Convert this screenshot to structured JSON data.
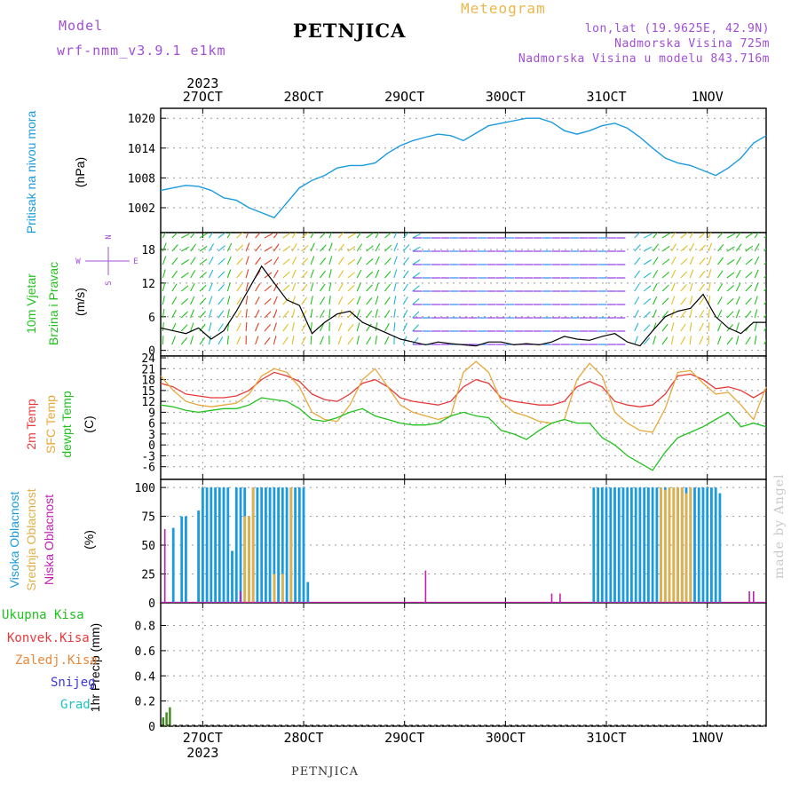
{
  "header": {
    "model_label": "Model",
    "model_name": "wrf-nmm_v3.9.1 e1km",
    "station": "PETNJICA",
    "product": "Meteogram",
    "lonlat": "lon,lat (19.9625E, 42.9N)",
    "elevation": "Nadmorska Visina 725m",
    "elevation_model": "Nadmorska Visina u modelu 843.716m"
  },
  "footer": {
    "station": "PETNJICA",
    "credit": "made by Angel"
  },
  "colors": {
    "pressure": "#1a9be0",
    "temp2m": "#e83a3a",
    "sfc_temp": "#e8a83a",
    "dewpoint": "#22c21e",
    "high_cloud": "#1a9be0",
    "mid_cloud": "#e0b04a",
    "low_cloud": "#c01fb0",
    "precip": "#3d8a1a",
    "accent_purple": "#a14fd6"
  },
  "chart_data": [
    {
      "type": "line",
      "id": "pressure",
      "ylabel_lines": [
        "Pritisak na nivou mora",
        "(hPa)"
      ],
      "yticks": [
        1002,
        1008,
        1014,
        1020
      ],
      "ylim": [
        997,
        1022
      ],
      "xlim": [
        0,
        144
      ],
      "xtick_labels": [
        "27OCT",
        "28OCT",
        "29OCT",
        "30OCT",
        "31OCT",
        "1NOV"
      ],
      "xtick_hours": [
        10,
        34,
        58,
        82,
        106,
        130
      ],
      "year_label": "2023",
      "series": [
        {
          "x": [
            0,
            3,
            6,
            9,
            12,
            15,
            18,
            21,
            24,
            27,
            30,
            33,
            36,
            39,
            42,
            45,
            48,
            51,
            54,
            57,
            60,
            63,
            66,
            69,
            72,
            75,
            78,
            81,
            84,
            87,
            90,
            93,
            96,
            99,
            102,
            105,
            108,
            111,
            114,
            117,
            120,
            123,
            126,
            129,
            132,
            135,
            138,
            141,
            144
          ],
          "values": [
            1005.5,
            1006,
            1006.5,
            1006.3,
            1005.5,
            1004,
            1003.5,
            1002,
            1001,
            1000,
            1003,
            1006,
            1007.5,
            1008.5,
            1010,
            1010.5,
            1010.5,
            1011,
            1013,
            1014.5,
            1015.5,
            1016.2,
            1016.8,
            1016.5,
            1015.5,
            1017,
            1018.5,
            1019,
            1019.5,
            1020,
            1020,
            1019.2,
            1017.5,
            1016.8,
            1017.5,
            1018.5,
            1019,
            1018,
            1016.2,
            1014,
            1012,
            1011,
            1010.5,
            1009.5,
            1008.5,
            1010,
            1012,
            1015,
            1016.5
          ]
        }
      ]
    },
    {
      "type": "line",
      "id": "wind",
      "ylabel_lines": [
        "10m Vjetar",
        "Brzina i Pravac",
        "(m/s)"
      ],
      "compass": [
        "N",
        "W",
        "E",
        "S"
      ],
      "yticks": [
        0,
        6,
        12,
        18
      ],
      "ylim": [
        -1,
        21
      ],
      "xlim": [
        0,
        144
      ],
      "series": [
        {
          "name": "speed",
          "x": [
            0,
            3,
            6,
            9,
            12,
            15,
            18,
            21,
            24,
            27,
            30,
            33,
            36,
            39,
            42,
            45,
            48,
            51,
            54,
            57,
            60,
            63,
            66,
            69,
            72,
            75,
            78,
            81,
            84,
            87,
            90,
            93,
            96,
            99,
            102,
            105,
            108,
            111,
            114,
            117,
            120,
            123,
            126,
            129,
            132,
            135,
            138,
            141,
            144
          ],
          "values": [
            4,
            3.5,
            3,
            4,
            2,
            3.5,
            7,
            11,
            15,
            12,
            9,
            8,
            3,
            5,
            6.5,
            7,
            5,
            4,
            3,
            2,
            1.5,
            1,
            1.5,
            1.2,
            1,
            0.8,
            1.5,
            1.5,
            1,
            1.2,
            1,
            1.5,
            2.5,
            2,
            1.8,
            2.5,
            3,
            1.5,
            0.8,
            3.5,
            6,
            7,
            7.5,
            10,
            6,
            4,
            3,
            5,
            5
          ]
        }
      ]
    },
    {
      "type": "line",
      "id": "temperature",
      "ylabel_lines": [
        "2m Temp",
        "SFC Temp",
        "dewpt Temp",
        "(C)"
      ],
      "yticks": [
        -6,
        -3,
        0,
        3,
        6,
        9,
        12,
        15,
        18,
        21,
        24
      ],
      "ylim": [
        -9.5,
        24.5
      ],
      "xlim": [
        0,
        144
      ],
      "series": [
        {
          "name": "2m Temp",
          "x": [
            0,
            3,
            6,
            9,
            12,
            15,
            18,
            21,
            24,
            27,
            30,
            33,
            36,
            39,
            42,
            45,
            48,
            51,
            54,
            57,
            60,
            63,
            66,
            69,
            72,
            75,
            78,
            81,
            84,
            87,
            90,
            93,
            96,
            99,
            102,
            105,
            108,
            111,
            114,
            117,
            120,
            123,
            126,
            129,
            132,
            135,
            138,
            141,
            144
          ],
          "values": [
            17,
            16,
            14,
            13.5,
            13,
            13,
            13.5,
            15,
            18,
            20,
            19,
            17.5,
            14,
            12.5,
            12,
            14,
            17,
            18,
            16,
            13,
            12,
            11.5,
            11,
            12,
            16,
            18,
            17,
            13,
            12,
            11.5,
            11,
            11,
            12,
            16,
            17.5,
            16,
            12,
            11,
            10.5,
            11,
            14,
            19,
            19.5,
            18,
            15.5,
            16,
            15,
            13,
            15
          ]
        },
        {
          "name": "SFC Temp",
          "x": [
            0,
            3,
            6,
            9,
            12,
            15,
            18,
            21,
            24,
            27,
            30,
            33,
            36,
            39,
            42,
            45,
            48,
            51,
            54,
            57,
            60,
            63,
            66,
            69,
            72,
            75,
            78,
            81,
            84,
            87,
            90,
            93,
            96,
            99,
            102,
            105,
            108,
            111,
            114,
            117,
            120,
            123,
            126,
            129,
            132,
            135,
            138,
            141,
            144
          ],
          "values": [
            19,
            15,
            12,
            11,
            10.5,
            11,
            11.5,
            14,
            19,
            21,
            20,
            16,
            9,
            7,
            6.5,
            11,
            18,
            21,
            16,
            11,
            9,
            8,
            7,
            8,
            20,
            23,
            20,
            12,
            9,
            8,
            6.5,
            6,
            7,
            18,
            22.5,
            19,
            9,
            6,
            4,
            3.5,
            10,
            20,
            20.5,
            17,
            14,
            14.5,
            11,
            7,
            16
          ]
        },
        {
          "name": "dewpt Temp",
          "x": [
            0,
            3,
            6,
            9,
            12,
            15,
            18,
            21,
            24,
            27,
            30,
            33,
            36,
            39,
            42,
            45,
            48,
            51,
            54,
            57,
            60,
            63,
            66,
            69,
            72,
            75,
            78,
            81,
            84,
            87,
            90,
            93,
            96,
            99,
            102,
            105,
            108,
            111,
            114,
            117,
            120,
            123,
            126,
            129,
            132,
            135,
            138,
            141,
            144
          ],
          "values": [
            11,
            10.5,
            9.5,
            9,
            9.5,
            10,
            10,
            11,
            13,
            12.5,
            12,
            10,
            7,
            6.5,
            7.5,
            9,
            10,
            8,
            7,
            6,
            5.5,
            5.5,
            6,
            8,
            9,
            8,
            7.5,
            4,
            3,
            1.5,
            4,
            6,
            7,
            6,
            6,
            2,
            0,
            -3,
            -5,
            -7,
            -2,
            2,
            3.5,
            5,
            7,
            9,
            5,
            6,
            5
          ]
        }
      ]
    },
    {
      "type": "bar",
      "id": "cloud",
      "ylabel_lines": [
        "Visoka Oblacnost",
        "Srednja Oblacnost",
        "Niska Oblacnost",
        "(%)"
      ],
      "yticks": [
        0,
        25,
        50,
        75,
        100
      ],
      "ylim": [
        0,
        107
      ],
      "xlim": [
        0,
        144
      ],
      "series": [
        {
          "name": "Visoka Oblacnost",
          "x": [
            3,
            5,
            6,
            9,
            10,
            11,
            12,
            13,
            14,
            15,
            16,
            17,
            18,
            19,
            20,
            21,
            22,
            23,
            24,
            25,
            26,
            27,
            28,
            29,
            30,
            31,
            32,
            33,
            34,
            35,
            103,
            104,
            105,
            106,
            107,
            108,
            109,
            110,
            111,
            112,
            113,
            114,
            115,
            116,
            117,
            118,
            119,
            120,
            121,
            122,
            123,
            124,
            125,
            126,
            127,
            128,
            129,
            130,
            131,
            132,
            133
          ],
          "values": [
            65,
            75,
            75,
            80,
            100,
            100,
            100,
            100,
            100,
            100,
            100,
            45,
            100,
            100,
            100,
            75,
            100,
            100,
            100,
            100,
            100,
            100,
            100,
            100,
            100,
            100,
            100,
            100,
            100,
            18,
            100,
            100,
            100,
            100,
            100,
            100,
            100,
            100,
            100,
            100,
            100,
            100,
            100,
            100,
            100,
            100,
            100,
            100,
            100,
            100,
            100,
            100,
            100,
            100,
            100,
            100,
            100,
            100,
            100,
            100,
            95
          ]
        },
        {
          "name": "Srednja Oblacnost",
          "x": [
            20,
            21,
            22,
            27,
            29,
            31,
            119,
            120,
            121,
            122,
            123,
            124,
            125,
            126
          ],
          "values": [
            75,
            75,
            100,
            25,
            25,
            100,
            100,
            98,
            100,
            100,
            100,
            100,
            95,
            100
          ]
        },
        {
          "name": "Niska Oblacnost",
          "x": [
            1,
            19,
            63,
            93,
            95,
            140,
            141
          ],
          "values": [
            64,
            10,
            28,
            8,
            8,
            10,
            10
          ]
        }
      ]
    },
    {
      "type": "bar",
      "id": "precip",
      "ylabel_lines": [
        "1hr Precip (mm)"
      ],
      "legend": [
        "Ukupna Kisa",
        "Konvek.Kisa",
        "Zaledj.Kisa",
        "Snijeg",
        "Grad"
      ],
      "legend_colors": [
        "#22c21e",
        "#e83a3a",
        "#e8883a",
        "#3a3ad8",
        "#1ec2c2"
      ],
      "yticks": [
        0,
        0.2,
        0.4,
        0.6,
        0.8
      ],
      "ylim": [
        0,
        0.98
      ],
      "xlim": [
        0,
        144
      ],
      "xtick_labels": [
        "27OCT",
        "28OCT",
        "29OCT",
        "30OCT",
        "31OCT",
        "1NOV"
      ],
      "year_label": "2023",
      "series": [
        {
          "name": "Ukupna Kisa",
          "x": [
            0.6,
            1.4,
            2.2
          ],
          "values": [
            0.07,
            0.11,
            0.15
          ]
        }
      ]
    }
  ]
}
